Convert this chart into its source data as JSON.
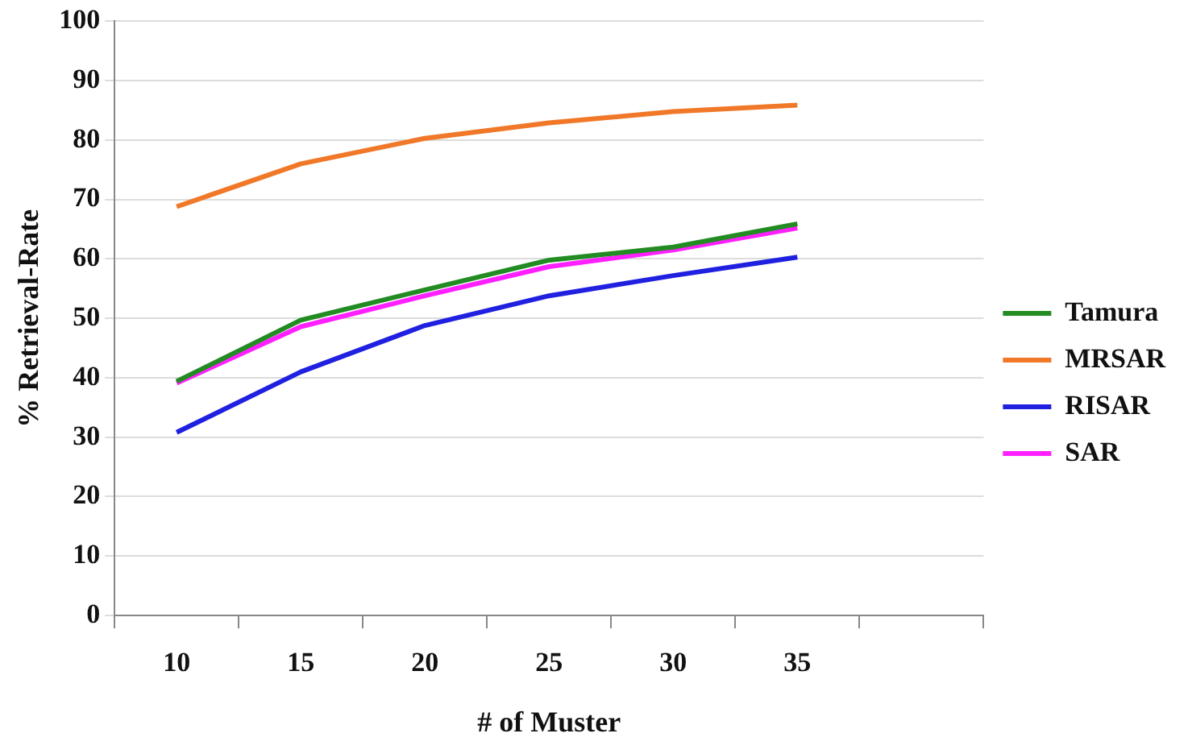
{
  "chart_data": {
    "type": "line",
    "xlabel": "# of Muster",
    "ylabel": "% Retrieval-Rate",
    "categories": [
      "10",
      "15",
      "20",
      "25",
      "30",
      "35",
      null
    ],
    "series": [
      {
        "name": "Tamura",
        "color": "#228b22",
        "values": [
          39.4,
          49.7,
          54.8,
          59.8,
          62,
          65.9,
          null
        ]
      },
      {
        "name": "MRSAR",
        "color": "#f07828",
        "values": [
          68.8,
          76,
          80.3,
          82.9,
          84.8,
          85.9,
          null
        ]
      },
      {
        "name": "RISAR",
        "color": "#2020e0",
        "values": [
          30.8,
          41,
          48.8,
          53.8,
          57.2,
          60.3,
          null
        ]
      },
      {
        "name": "SAR",
        "color": "#ff20ff",
        "values": [
          39.1,
          48.6,
          53.8,
          58.7,
          61.5,
          65.2,
          null
        ]
      }
    ],
    "ylim": [
      0,
      100
    ],
    "yticks": [
      0,
      10,
      20,
      30,
      40,
      50,
      60,
      70,
      80,
      90,
      100
    ],
    "grid": "y",
    "legend": "right",
    "marker": "none",
    "line_style": "solid"
  }
}
